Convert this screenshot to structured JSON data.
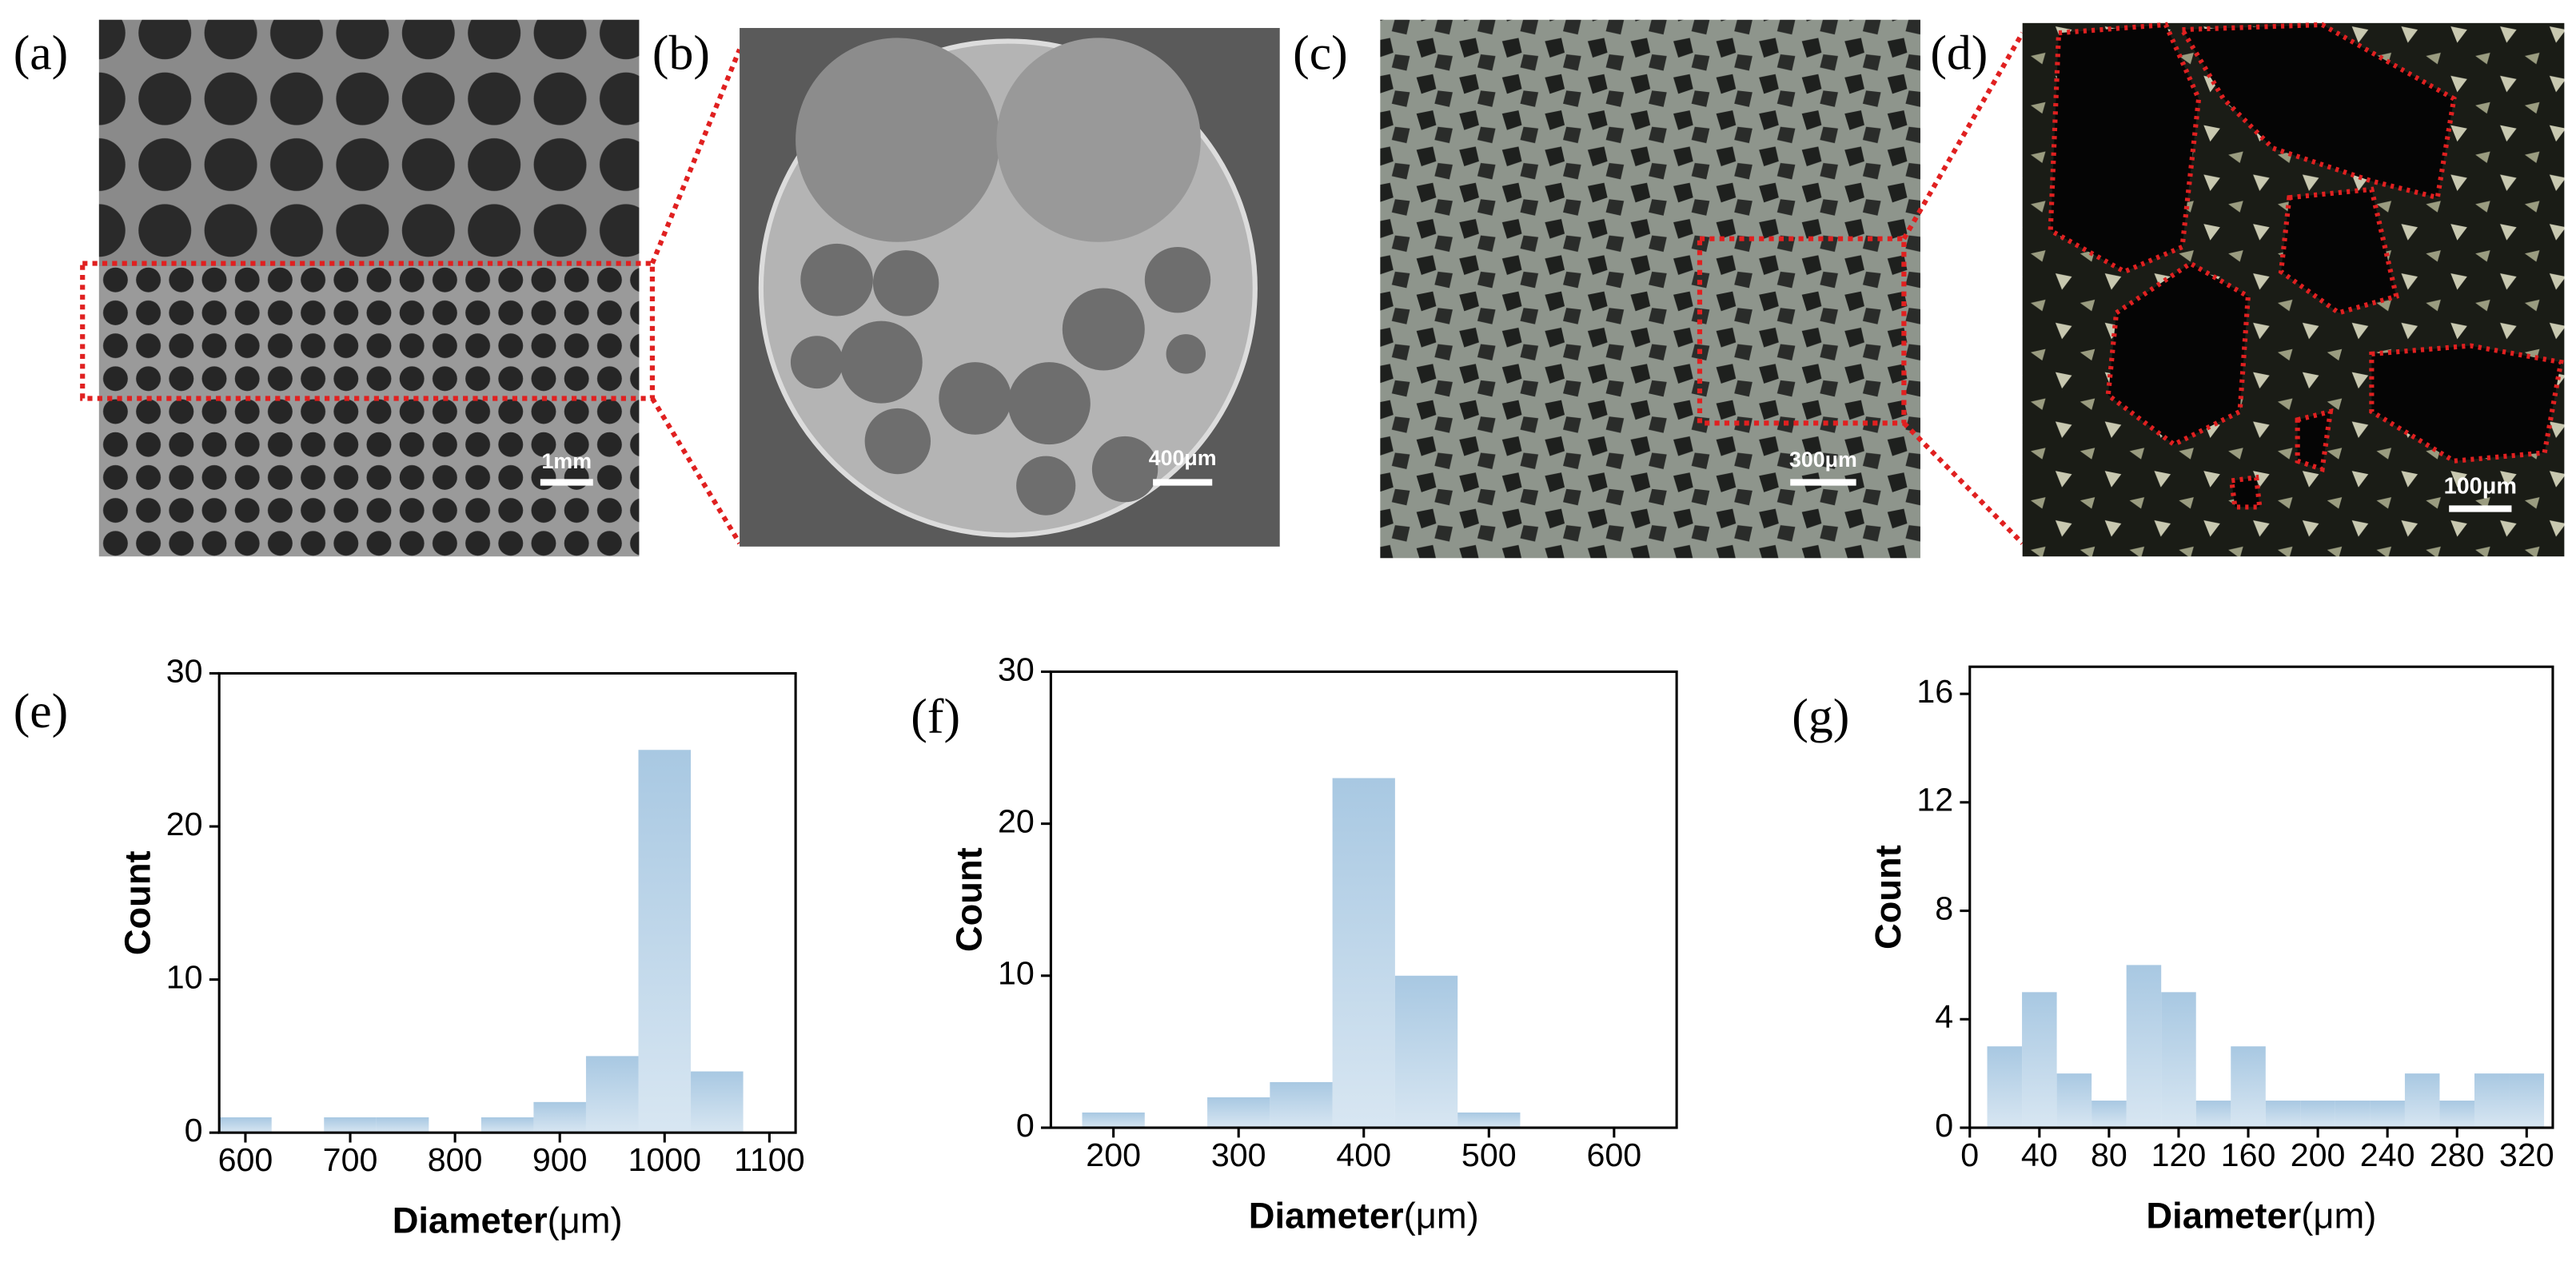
{
  "images": [
    {
      "label": "(a)",
      "scale_bar": "1mm"
    },
    {
      "label": "(b)",
      "scale_bar": "400μm"
    },
    {
      "label": "(c)",
      "scale_bar": "300μm"
    },
    {
      "label": "(d)",
      "scale_bar": "100μm"
    }
  ],
  "chart_data": [
    {
      "type": "histogram",
      "label": "(e)",
      "x_label": "Diameter",
      "x_unit": "(μm)",
      "y_label": "Count",
      "color": "#a8c8e2",
      "bins": [
        575,
        625,
        675,
        725,
        775,
        825,
        875,
        925,
        975,
        1025,
        1075
      ],
      "values": [
        1,
        0,
        1,
        1,
        0,
        1,
        2,
        5,
        25,
        4
      ],
      "xlim": [
        575,
        1125
      ],
      "xticks": [
        600,
        700,
        800,
        900,
        1000,
        1100
      ],
      "ylim": [
        0,
        30
      ],
      "yticks": [
        0,
        10,
        20,
        30
      ]
    },
    {
      "type": "histogram",
      "label": "(f)",
      "x_label": "Diameter",
      "x_unit": "(μm)",
      "y_label": "Count",
      "color": "#a8c8e2",
      "bins": [
        175,
        225,
        275,
        325,
        375,
        425,
        475,
        525
      ],
      "values": [
        1,
        0,
        2,
        3,
        23,
        10,
        1
      ],
      "xlim": [
        150,
        650
      ],
      "xticks": [
        200,
        300,
        400,
        500,
        600
      ],
      "ylim": [
        0,
        30
      ],
      "yticks": [
        0,
        10,
        20,
        30
      ]
    },
    {
      "type": "histogram",
      "label": "(g)",
      "x_label": "Diameter",
      "x_unit": "(μm)",
      "y_label": "Count",
      "color": "#a8c8e2",
      "bins": [
        10,
        30,
        50,
        70,
        90,
        110,
        130,
        150,
        170,
        190,
        210,
        230,
        250,
        270,
        290,
        310,
        330
      ],
      "values": [
        3,
        5,
        2,
        1,
        6,
        5,
        1,
        3,
        1,
        1,
        1,
        1,
        2,
        1,
        2,
        2
      ],
      "xlim": [
        0,
        335
      ],
      "xticks": [
        0,
        40,
        80,
        120,
        160,
        200,
        240,
        280,
        320
      ],
      "ylim": [
        0,
        17
      ],
      "yticks": [
        0,
        4,
        8,
        12,
        16
      ]
    }
  ]
}
